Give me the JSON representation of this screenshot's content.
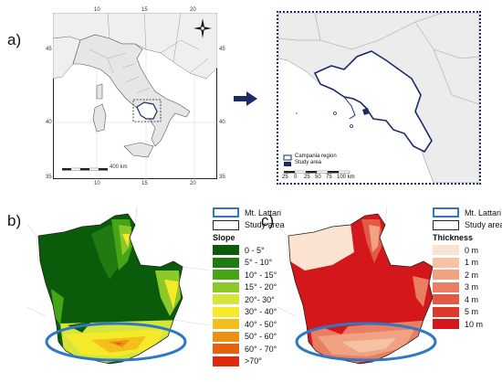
{
  "panels": {
    "a": {
      "letter": "a)",
      "lon_ticks_top": [
        "10",
        "15",
        "20"
      ],
      "lon_ticks_bottom": [
        "10",
        "15",
        "20"
      ],
      "lat_ticks_left": [
        "45",
        "40",
        "35"
      ],
      "lat_ticks_right": [
        "45",
        "40",
        "35"
      ],
      "scalebar": "400 km",
      "inset_legend": {
        "campania": "Campania region",
        "study": "Study area",
        "scalebar_labels": [
          "25",
          "0",
          "25",
          "50",
          "75",
          "100 km"
        ]
      }
    },
    "b": {
      "letter": "b)",
      "legend": {
        "mt_lattari": "Mt. Lattari",
        "study_area": "Study area",
        "title": "Slope",
        "classes": [
          {
            "label": "0 - 5°",
            "color": "#0a5c0a"
          },
          {
            "label": "5° - 10°",
            "color": "#1f7a12"
          },
          {
            "label": "10° - 15°",
            "color": "#46a516"
          },
          {
            "label": "15° - 20°",
            "color": "#8cc82a"
          },
          {
            "label": "20°- 30°",
            "color": "#d6e53a"
          },
          {
            "label": "30° - 40°",
            "color": "#f5ea2a"
          },
          {
            "label": "40° - 50°",
            "color": "#f2bf1c"
          },
          {
            "label": "50° - 60°",
            "color": "#ec8f14"
          },
          {
            "label": "60° - 70°",
            "color": "#e5600f"
          },
          {
            "label": ">70°",
            "color": "#dc2a0c"
          }
        ]
      }
    },
    "c": {
      "letter": "c)",
      "legend": {
        "mt_lattari": "Mt. Lattari",
        "study_area": "Study area",
        "title": "Thickness",
        "classes": [
          {
            "label": "0 m",
            "color": "#fbe3d2"
          },
          {
            "label": "1 m",
            "color": "#f6c2a5"
          },
          {
            "label": "2 m",
            "color": "#f0a283"
          },
          {
            "label": "3 m",
            "color": "#e97e62"
          },
          {
            "label": "4 m",
            "color": "#e35a44"
          },
          {
            "label": "5 m",
            "color": "#dc3a2c"
          },
          {
            "label": "10 m",
            "color": "#d4171a"
          }
        ]
      }
    }
  },
  "colors": {
    "ellipse": "#2e78c4",
    "inset_border": "#1a2a6b",
    "arrow": "#1a2a6b"
  },
  "icons": [
    "north-arrow-icon",
    "right-arrow-icon"
  ]
}
